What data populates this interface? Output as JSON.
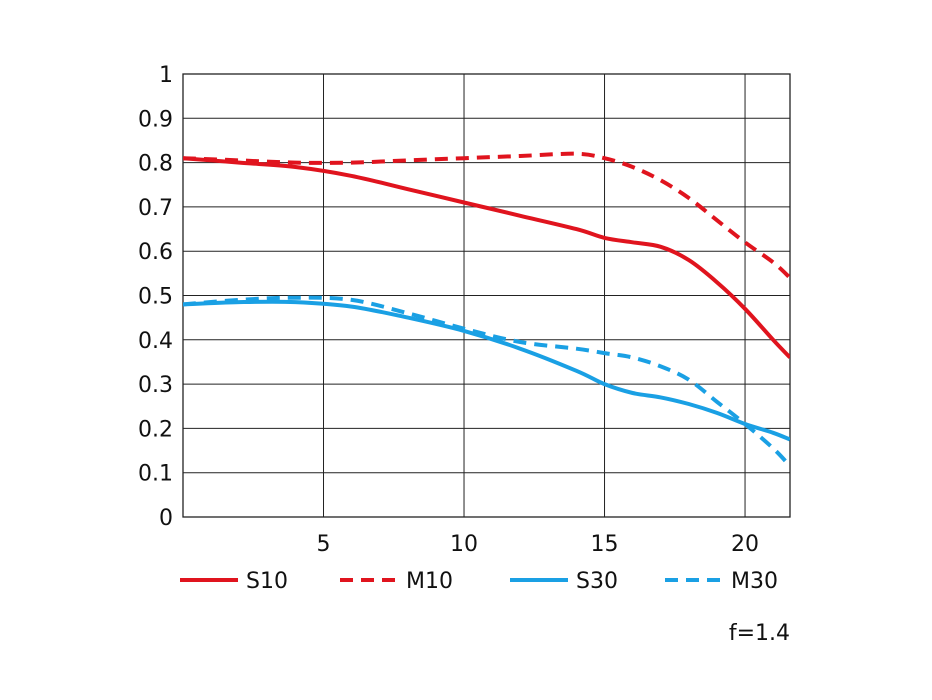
{
  "chart_data": {
    "type": "line",
    "xlim": [
      0,
      21.6
    ],
    "ylim": [
      0,
      1
    ],
    "x_ticks": [
      5,
      10,
      15,
      20
    ],
    "y_ticks": [
      0,
      0.1,
      0.2,
      0.3,
      0.4,
      0.5,
      0.6,
      0.7,
      0.8,
      0.9,
      1
    ],
    "y_tick_labels": [
      "0",
      "0.1",
      "0.2",
      "0.3",
      "0.4",
      "0.5",
      "0.6",
      "0.7",
      "0.8",
      "0.9",
      "1"
    ],
    "x_tick_labels": [
      "5",
      "10",
      "15",
      "20"
    ],
    "grid": true,
    "legend_position": "bottom",
    "annotation": "f=1.4",
    "series": [
      {
        "name": "S10",
        "color": "#e0141e",
        "style": "solid",
        "x": [
          0,
          2,
          4,
          6,
          8,
          10,
          12,
          14,
          15,
          16,
          17,
          18,
          19,
          20,
          21,
          21.6
        ],
        "y": [
          0.81,
          0.8,
          0.79,
          0.77,
          0.74,
          0.71,
          0.68,
          0.65,
          0.63,
          0.62,
          0.61,
          0.58,
          0.53,
          0.47,
          0.4,
          0.36
        ]
      },
      {
        "name": "M10",
        "color": "#e0141e",
        "style": "dashed",
        "x": [
          0,
          2,
          4,
          6,
          8,
          10,
          12,
          14,
          15,
          16,
          17,
          18,
          19,
          20,
          21,
          21.6
        ],
        "y": [
          0.81,
          0.805,
          0.8,
          0.8,
          0.805,
          0.81,
          0.815,
          0.82,
          0.81,
          0.79,
          0.76,
          0.72,
          0.67,
          0.62,
          0.575,
          0.54
        ]
      },
      {
        "name": "S30",
        "color": "#1aa0e4",
        "style": "solid",
        "x": [
          0,
          2,
          4,
          6,
          8,
          10,
          12,
          14,
          15,
          16,
          17,
          18,
          19,
          20,
          21,
          21.6
        ],
        "y": [
          0.48,
          0.485,
          0.485,
          0.475,
          0.45,
          0.42,
          0.38,
          0.33,
          0.3,
          0.28,
          0.27,
          0.255,
          0.235,
          0.21,
          0.19,
          0.175
        ]
      },
      {
        "name": "M30",
        "color": "#1aa0e4",
        "style": "dashed",
        "x": [
          0,
          2,
          4,
          6,
          8,
          10,
          12,
          14,
          15,
          16,
          17,
          18,
          19,
          20,
          21,
          21.6
        ],
        "y": [
          0.48,
          0.49,
          0.495,
          0.49,
          0.46,
          0.425,
          0.395,
          0.38,
          0.37,
          0.36,
          0.34,
          0.31,
          0.26,
          0.21,
          0.155,
          0.115
        ]
      }
    ]
  }
}
